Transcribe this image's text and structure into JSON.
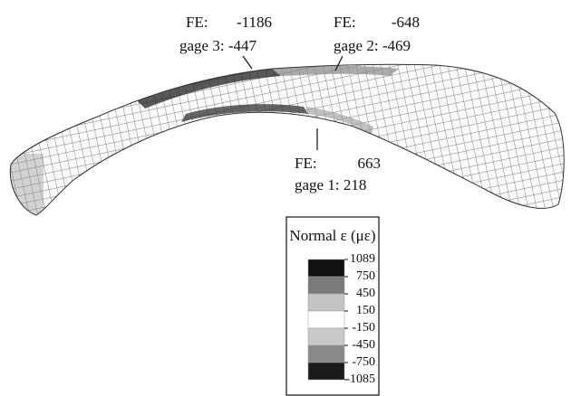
{
  "annotations": [
    {
      "fe_label": "FE:",
      "fe_value": "-1186",
      "gage_label": "gage 3: -447"
    },
    {
      "fe_label": "FE:",
      "fe_value": "-648",
      "gage_label": "gage 2: -469"
    },
    {
      "fe_label": "FE:",
      "fe_value": "663",
      "gage_label": "gage 1: 218"
    }
  ],
  "legend": {
    "title": "Normal ε (με)",
    "ticks": [
      "1089",
      "750",
      "450",
      "150",
      "-150",
      "-450",
      "-750",
      "-1085"
    ],
    "colors": [
      "#111111",
      "#7a7a7a",
      "#c4c4c4",
      "#ffffff",
      "#c8c8c8",
      "#8a8a8a",
      "#1a1a1a"
    ]
  }
}
